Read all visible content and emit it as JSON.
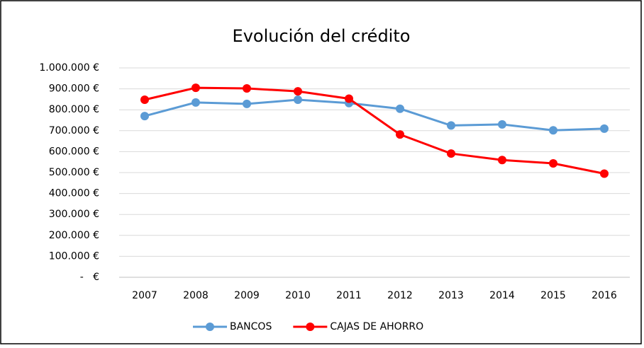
{
  "chart_data": {
    "type": "line",
    "title": "Evolución del crédito",
    "categories": [
      "2007",
      "2008",
      "2009",
      "2010",
      "2011",
      "2012",
      "2013",
      "2014",
      "2015",
      "2016"
    ],
    "series": [
      {
        "name": "BANCOS",
        "color": "#5b9bd5",
        "values": [
          770000,
          835000,
          828000,
          848000,
          832000,
          805000,
          725000,
          730000,
          702000,
          710000
        ]
      },
      {
        "name": "CAJAS DE AHORRO",
        "color": "#ff0000",
        "values": [
          848000,
          905000,
          902000,
          888000,
          853000,
          682000,
          591000,
          560000,
          544000,
          495000
        ]
      }
    ],
    "ylim": [
      0,
      1000000
    ],
    "yticks": [
      {
        "value": 0,
        "label": "-   €"
      },
      {
        "value": 100000,
        "label": "100.000 €"
      },
      {
        "value": 200000,
        "label": "200.000 €"
      },
      {
        "value": 300000,
        "label": "300.000 €"
      },
      {
        "value": 400000,
        "label": "400.000 €"
      },
      {
        "value": 500000,
        "label": "500.000 €"
      },
      {
        "value": 600000,
        "label": "600.000 €"
      },
      {
        "value": 700000,
        "label": "700.000 €"
      },
      {
        "value": 800000,
        "label": "800.000 €"
      },
      {
        "value": 900000,
        "label": "900.000 €"
      },
      {
        "value": 1000000,
        "label": "1.000.000 €"
      }
    ],
    "grid": true,
    "legend": "bottom"
  }
}
